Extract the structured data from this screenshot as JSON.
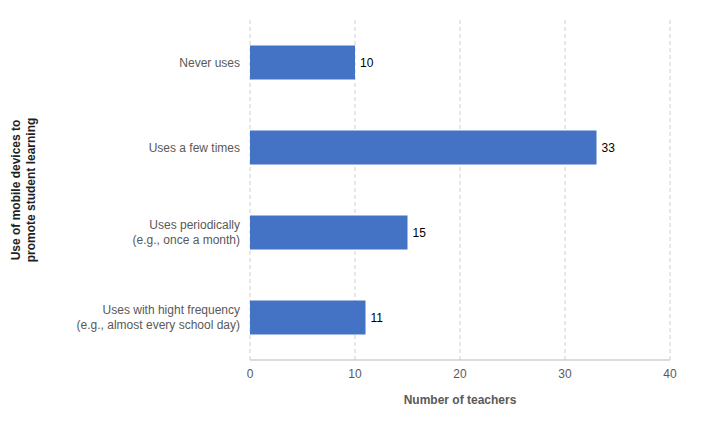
{
  "chart_data": {
    "type": "bar",
    "orientation": "horizontal",
    "categories": [
      "Uses with hight frequency\n(e.g., almost every school day)",
      "Uses periodically\n(e.g., once a month)",
      "Uses a few times",
      "Never uses"
    ],
    "values": [
      11,
      15,
      33,
      10
    ],
    "color": "#4472C4",
    "x_label": "Number of teachers",
    "y_label": "Use of mobile devices to\npromote student learning",
    "xlim": [
      0,
      40
    ],
    "xticks": [
      0,
      10,
      20,
      30,
      40
    ],
    "grid": true,
    "data_labels": true
  }
}
